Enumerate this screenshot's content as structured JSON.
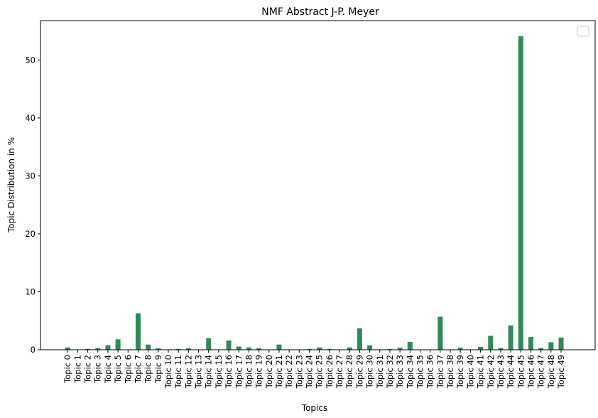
{
  "chart_data": {
    "type": "bar",
    "title": "NMF Abstract J-P. Meyer",
    "xlabel": "Topics",
    "ylabel": "Topic Distribution in %",
    "ylim": [
      0,
      56.8
    ],
    "yticks": [
      0,
      10,
      20,
      30,
      40,
      50
    ],
    "grid": false,
    "legend": "top-right",
    "bar_color": "#2e8b57",
    "categories": [
      "Topic 0",
      "Topic 1",
      "Topic 2",
      "Topic 3",
      "Topic 4",
      "Topic 5",
      "Topic 6",
      "Topic 7",
      "Topic 8",
      "Topic 9",
      "Topic 10",
      "Topic 11",
      "Topic 12",
      "Topic 13",
      "Topic 14",
      "Topic 15",
      "Topic 16",
      "Topic 17",
      "Topic 18",
      "Topic 19",
      "Topic 20",
      "Topic 21",
      "Topic 22",
      "Topic 23",
      "Topic 24",
      "Topic 25",
      "Topic 26",
      "Topic 27",
      "Topic 28",
      "Topic 29",
      "Topic 30",
      "Topic 31",
      "Topic 32",
      "Topic 33",
      "Topic 34",
      "Topic 35",
      "Topic 36",
      "Topic 37",
      "Topic 38",
      "Topic 39",
      "Topic 40",
      "Topic 41",
      "Topic 42",
      "Topic 43",
      "Topic 44",
      "Topic 45",
      "Topic 46",
      "Topic 47",
      "Topic 48",
      "Topic 49"
    ],
    "values": [
      0.4,
      0.05,
      0.15,
      0.3,
      0.8,
      1.8,
      0.05,
      6.3,
      0.9,
      0.25,
      0.05,
      0.15,
      0.25,
      0.05,
      2.0,
      0.05,
      1.6,
      0.55,
      0.4,
      0.25,
      0.05,
      0.9,
      0.05,
      0.05,
      0.15,
      0.4,
      0.15,
      0.05,
      0.4,
      3.7,
      0.75,
      0.05,
      0.15,
      0.35,
      1.35,
      0.05,
      0.05,
      5.7,
      0.05,
      0.35,
      0.05,
      0.5,
      2.4,
      0.3,
      4.2,
      54.1,
      2.2,
      0.3,
      1.3,
      2.1
    ]
  }
}
